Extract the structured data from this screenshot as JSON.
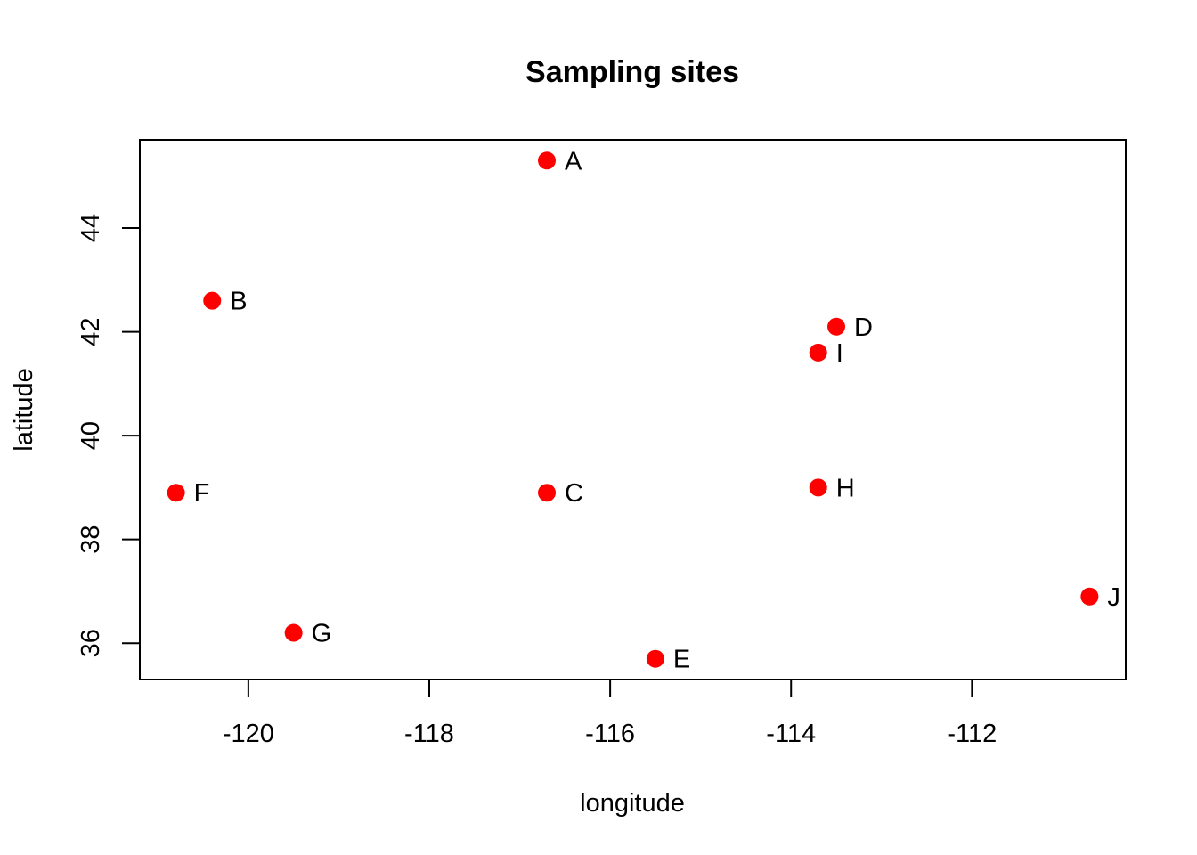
{
  "chart_data": {
    "type": "scatter",
    "title": "Sampling sites",
    "xlabel": "longitude",
    "ylabel": "latitude",
    "xlim": [
      -121.2,
      -110.3
    ],
    "ylim": [
      35.3,
      45.7
    ],
    "xticks": [
      -120,
      -118,
      -116,
      -114,
      -112
    ],
    "yticks": [
      36,
      38,
      40,
      42,
      44
    ],
    "point_color": "#ff0000",
    "grid": false,
    "points": [
      {
        "label": "A",
        "x": -116.7,
        "y": 45.3
      },
      {
        "label": "B",
        "x": -120.4,
        "y": 42.6
      },
      {
        "label": "C",
        "x": -116.7,
        "y": 38.9
      },
      {
        "label": "D",
        "x": -113.5,
        "y": 42.1
      },
      {
        "label": "E",
        "x": -115.5,
        "y": 35.7
      },
      {
        "label": "F",
        "x": -120.8,
        "y": 38.9
      },
      {
        "label": "G",
        "x": -119.5,
        "y": 36.2
      },
      {
        "label": "H",
        "x": -113.7,
        "y": 39.0
      },
      {
        "label": "I",
        "x": -113.7,
        "y": 41.6
      },
      {
        "label": "J",
        "x": -110.7,
        "y": 36.9
      }
    ]
  }
}
